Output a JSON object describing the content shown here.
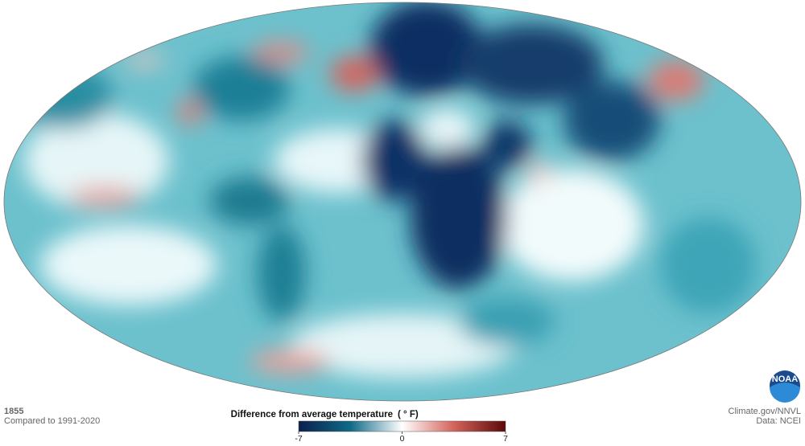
{
  "map": {
    "year": "1855",
    "comparison": "Compared to 1991-2020",
    "legend": {
      "title": "Difference from average temperature",
      "unit": "( ° F)",
      "min": -7,
      "max": 7,
      "ticks": [
        -7,
        0,
        7
      ]
    },
    "logo": "NOAA",
    "credit": "Climate.gov/NNVL",
    "source": "Data: NCEI"
  }
}
